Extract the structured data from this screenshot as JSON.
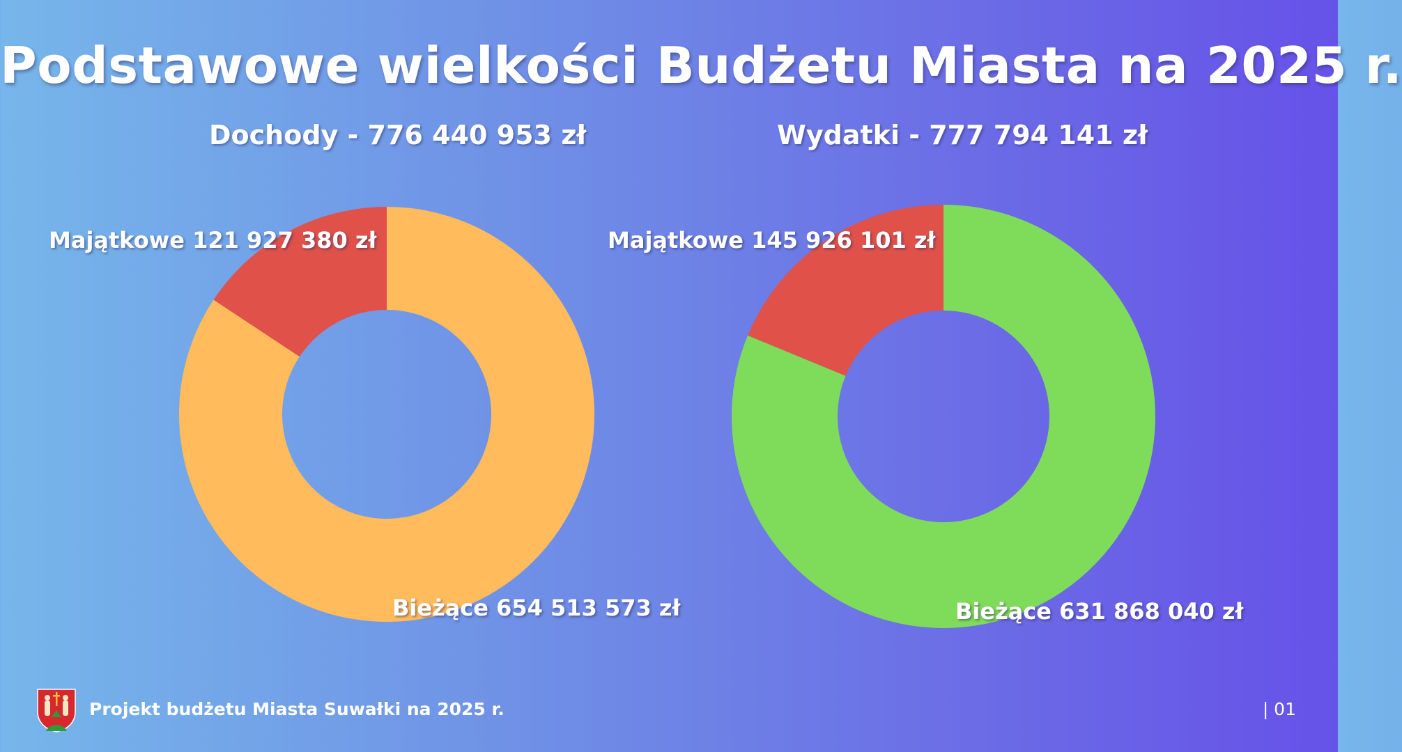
{
  "title": "Podstawowe wielkości Budżetu Miasta na 2025 r.",
  "footer": {
    "text": "Projekt budżetu Miasta Suwałki na 2025 r.",
    "page": "| 01",
    "crest_icon": "city-coat-of-arms-icon"
  },
  "chart_data": [
    {
      "type": "pie",
      "title": "Dochody - 776 440 953 zł",
      "slices": [
        {
          "label": "Majątkowe  121 927 380 zł",
          "value": 121927380,
          "color": "#e0514a"
        },
        {
          "label": "Bieżące 654 513 573 zł",
          "value": 654513573,
          "color": "#ffbb5c"
        }
      ]
    },
    {
      "type": "pie",
      "title": "Wydatki - 777 794 141 zł",
      "slices": [
        {
          "label": "Majątkowe  145 926 101 zł",
          "value": 145926101,
          "color": "#e0514a"
        },
        {
          "label": "Bieżące 631 868 040 zł",
          "value": 631868040,
          "color": "#7fdb5a"
        }
      ]
    }
  ]
}
